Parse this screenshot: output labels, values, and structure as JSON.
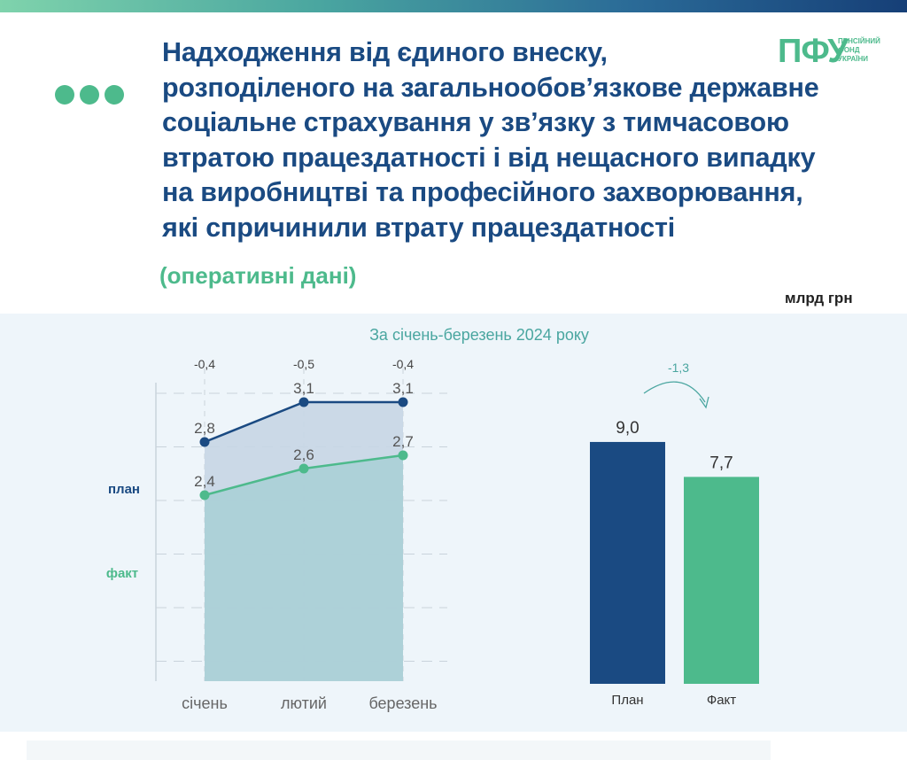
{
  "title_lines": [
    "Надходження від єдиного внеску,",
    "розподіленого на загальнообов’язкове державне",
    "соціальне страхування у зв’язку з тимчасовою",
    "втратою працездатності і від нещасного випадку",
    "на виробництві та професійного захворювання,",
    "які спричинили втрату працездатності"
  ],
  "subtitle": "(оперативні дані)",
  "units": "млрд грн",
  "logo": {
    "mark": "ПФУ",
    "text_lines": [
      "ПЕНСІЙНИЙ",
      "ФОНД",
      "УКРАЇНИ"
    ]
  },
  "colors": {
    "plan": "#1a4a82",
    "fact": "#4dba8c",
    "plan_area": "#c7d6e4",
    "fact_area": "#aacfd6",
    "annotation": "#4aa6a0",
    "axis_text": "#555555"
  },
  "chart_data": [
    {
      "type": "line",
      "title": "За січень-березень 2024 року",
      "categories": [
        "січень",
        "лютий",
        "березень"
      ],
      "series": [
        {
          "name": "план",
          "values": [
            2.8,
            3.1,
            3.1
          ]
        },
        {
          "name": "факт",
          "values": [
            2.4,
            2.6,
            2.7
          ]
        }
      ],
      "value_labels": {
        "план": [
          "2,8",
          "3,1",
          "3,1"
        ],
        "факт": [
          "2,4",
          "2,6",
          "2,7"
        ]
      },
      "differences": [
        "-0,4",
        "-0,5",
        "-0,4"
      ],
      "ylim": [
        1.0,
        3.5
      ],
      "grid": true
    },
    {
      "type": "bar",
      "categories": [
        "План",
        "Факт"
      ],
      "values": [
        9.0,
        7.7
      ],
      "value_labels": [
        "9,0",
        "7,7"
      ],
      "difference": "-1,3",
      "ylim": [
        0,
        11.8
      ]
    }
  ]
}
